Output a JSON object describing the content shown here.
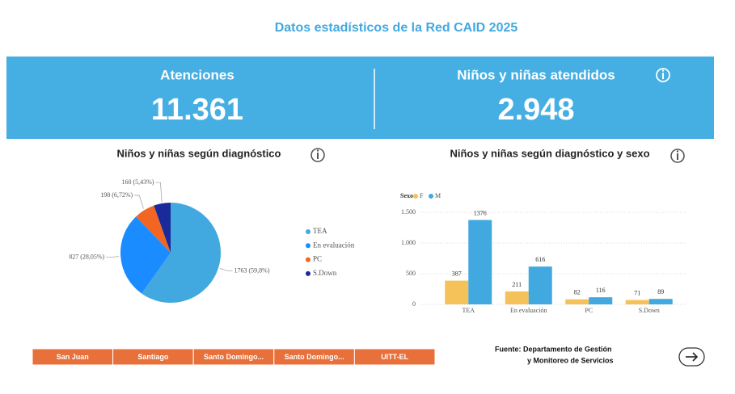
{
  "header": {
    "title": "Datos estadísticos de la Red CAID 2025"
  },
  "kpis": [
    {
      "label": "Atenciones",
      "value": "11.361"
    },
    {
      "label": "Niños y niñas atendidos",
      "value": "2.948"
    }
  ],
  "chart_data": [
    {
      "type": "pie",
      "title": "Niños y niñas según diagnóstico",
      "categories": [
        "TEA",
        "En evaluación",
        "PC",
        "S.Down"
      ],
      "values": [
        1763,
        827,
        198,
        160
      ],
      "value_labels": [
        "1763 (59,8%)",
        "827 (28,05%)",
        "198 (6,72%)",
        "160 (5,43%)"
      ],
      "colors": [
        "#42a9e0",
        "#1a8cff",
        "#f26522",
        "#1a2a99"
      ],
      "legend": "right"
    },
    {
      "type": "bar",
      "title": "Niños y niñas según diagnóstico y sexo",
      "legend_title": "Sexo",
      "categories": [
        "TEA",
        "En evaluación",
        "PC",
        "S.Down"
      ],
      "series": [
        {
          "name": "F",
          "color": "#f5c25a",
          "values": [
            387,
            211,
            82,
            71
          ]
        },
        {
          "name": "M",
          "color": "#42a9e0",
          "values": [
            1376,
            616,
            116,
            89
          ]
        }
      ],
      "ylim": [
        0,
        1500
      ],
      "yticks": [
        0,
        500,
        {
          "value": 1000,
          "label": "1.000"
        },
        {
          "value": 1500,
          "label": "1.500"
        }
      ],
      "grid": true,
      "legend": "top-left"
    }
  ],
  "buttons": [
    "San Juan",
    "Santiago",
    "Santo Domingo...",
    "Santo Domingo...",
    "UITT-EL"
  ],
  "footer": {
    "source": [
      "Fuente: Departamento de Gestión",
      "y Monitoreo de Servicios"
    ]
  }
}
